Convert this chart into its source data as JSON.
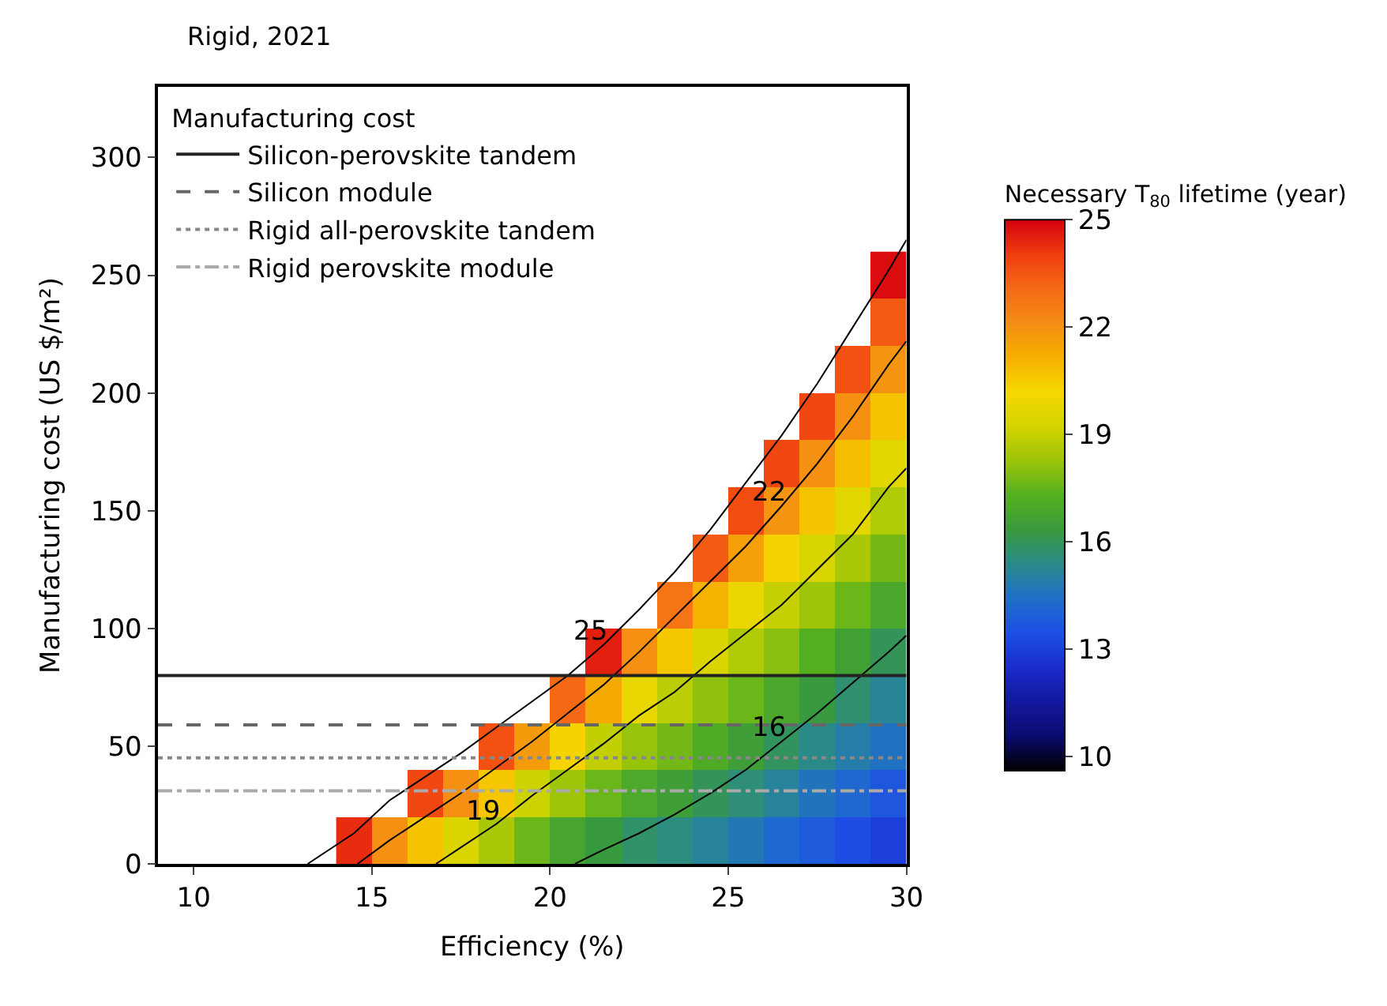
{
  "chart_data": {
    "type": "heatmap",
    "title": "Rigid, 2021",
    "xlabel": "Efficiency (%)",
    "ylabel": "Manufacturing cost (US $/m²)",
    "clabel": "Necessary T$_{80}$ lifetime (year)",
    "legend_title": "Manufacturing cost",
    "x": [
      14.5,
      15.5,
      16.5,
      17.5,
      18.5,
      19.5,
      20.5,
      21.5,
      22.5,
      23.5,
      24.5,
      25.5,
      26.5,
      27.5,
      28.5,
      29.5
    ],
    "y": [
      250,
      230,
      210,
      190,
      170,
      150,
      130,
      110,
      90,
      70,
      50,
      30,
      10
    ],
    "cells": [
      [
        null,
        null,
        null,
        null,
        null,
        null,
        null,
        null,
        null,
        null,
        null,
        null,
        null,
        null,
        null,
        24.8
      ],
      [
        null,
        null,
        null,
        null,
        null,
        null,
        null,
        null,
        null,
        null,
        null,
        null,
        null,
        null,
        null,
        23.4
      ],
      [
        null,
        null,
        null,
        null,
        null,
        null,
        null,
        null,
        null,
        null,
        null,
        null,
        null,
        null,
        23.6,
        21.9
      ],
      [
        null,
        null,
        null,
        null,
        null,
        null,
        null,
        null,
        null,
        null,
        null,
        null,
        null,
        23.8,
        22.0,
        20.7
      ],
      [
        null,
        null,
        null,
        null,
        null,
        null,
        null,
        null,
        null,
        null,
        null,
        null,
        23.8,
        22.0,
        20.8,
        19.6
      ],
      [
        null,
        null,
        null,
        null,
        null,
        null,
        null,
        null,
        null,
        null,
        null,
        23.7,
        21.9,
        20.7,
        19.6,
        18.6
      ],
      [
        null,
        null,
        null,
        null,
        null,
        null,
        null,
        null,
        null,
        null,
        23.4,
        21.6,
        20.3,
        19.3,
        18.5,
        17.7
      ],
      [
        null,
        null,
        null,
        null,
        null,
        null,
        null,
        null,
        null,
        22.8,
        21.1,
        19.9,
        19.0,
        18.3,
        17.6,
        16.9
      ],
      [
        null,
        null,
        null,
        null,
        null,
        null,
        null,
        24.5,
        22.0,
        20.6,
        19.4,
        18.6,
        18.0,
        17.3,
        16.6,
        16.0
      ],
      [
        null,
        null,
        null,
        null,
        null,
        null,
        23.1,
        21.3,
        19.8,
        18.8,
        18.1,
        17.6,
        16.9,
        16.3,
        15.7,
        15.2
      ],
      [
        null,
        null,
        null,
        null,
        23.6,
        21.7,
        20.3,
        18.9,
        18.2,
        17.7,
        17.1,
        16.5,
        15.9,
        15.4,
        14.9,
        14.5
      ],
      [
        null,
        null,
        23.8,
        22.0,
        20.6,
        19.1,
        18.3,
        17.6,
        17.0,
        16.5,
        16.0,
        15.6,
        15.1,
        14.6,
        14.2,
        13.7
      ],
      [
        24.3,
        22.0,
        20.7,
        19.4,
        18.5,
        17.6,
        16.8,
        16.3,
        15.8,
        15.5,
        15.1,
        14.7,
        14.2,
        13.8,
        13.4,
        13.0
      ]
    ],
    "colors": [
      "#000000",
      "#0a0a6e",
      "#12189e",
      "#1a2ccc",
      "#1e4fe6",
      "#1f6fc8",
      "#2a8a8a",
      "#3a9a3c",
      "#55b020",
      "#9cc40a",
      "#d4d400",
      "#f5d800",
      "#f5b000",
      "#f58c14",
      "#f56a14",
      "#f03c10",
      "#d40010"
    ],
    "clim": [
      9.6,
      25
    ],
    "cticks": [
      10,
      13,
      16,
      19,
      22,
      25
    ],
    "xlim": [
      9,
      30
    ],
    "xticks": [
      10,
      15,
      20,
      25,
      30
    ],
    "ylim": [
      0,
      330
    ],
    "yticks": [
      0,
      50,
      100,
      150,
      200,
      250,
      300
    ],
    "legend": "top left",
    "series": [
      {
        "type": "line",
        "color": "#000000",
        "line_style": "solid",
        "x": [
          13.2,
          14.5,
          15.5,
          16.5,
          17.5,
          18.5,
          19.5,
          20.5,
          21.5,
          22.5,
          23.5,
          24.5,
          25.5,
          26.5,
          27.5,
          28.5,
          29.5,
          30
        ],
        "values": [
          0,
          13,
          27,
          37,
          47,
          58,
          69,
          80,
          93,
          108,
          124,
          142,
          162,
          182,
          204,
          228,
          252,
          265
        ]
      },
      {
        "type": "line",
        "color": "#000000",
        "line_style": "solid",
        "x": [
          14.6,
          15.5,
          16.5,
          17.5,
          18.5,
          19.5,
          20.5,
          21.5,
          22.5,
          23.5,
          24.5,
          25.5,
          26.5,
          27.5,
          28.5,
          29.5,
          30
        ],
        "values": [
          0,
          10,
          20,
          30,
          41,
          52,
          64,
          76,
          90,
          105,
          120,
          135,
          152,
          170,
          190,
          212,
          222
        ]
      },
      {
        "type": "line",
        "color": "#000000",
        "line_style": "solid",
        "x": [
          16.8,
          17.5,
          18.5,
          19.5,
          20.5,
          21.5,
          22.5,
          23.5,
          24.5,
          25.5,
          26.5,
          27.5,
          28.5,
          29.5,
          30
        ],
        "values": [
          0,
          7,
          17,
          29,
          40,
          51,
          63,
          73,
          86,
          98,
          110,
          125,
          140,
          160,
          168
        ]
      },
      {
        "type": "line",
        "color": "#000000",
        "line_style": "solid",
        "x": [
          20.7,
          21.5,
          22.5,
          23.5,
          24.5,
          25.5,
          26.5,
          27.5,
          28.5,
          29.5,
          30
        ],
        "values": [
          0,
          6,
          13,
          21,
          30,
          40,
          52,
          64,
          77,
          90,
          97
        ]
      },
      {
        "type": "line",
        "name": "Silicon-perovskite tandem",
        "color": "#222222",
        "line_style": "solid",
        "x": [
          9,
          30
        ],
        "values": [
          80,
          80
        ]
      },
      {
        "type": "line",
        "name": "Silicon module",
        "color": "#666666",
        "line_style": "dashed",
        "x": [
          9,
          30
        ],
        "values": [
          59,
          59
        ]
      },
      {
        "type": "line",
        "name": "Rigid all-perovskite tandem",
        "color": "#888888",
        "line_style": "dotted",
        "x": [
          9,
          30
        ],
        "values": [
          45,
          45
        ]
      },
      {
        "type": "line",
        "name": "Rigid perovskite module",
        "color": "#aaaaaa",
        "line_style": "dashdot",
        "x": [
          9,
          30
        ],
        "values": [
          31,
          31
        ]
      }
    ],
    "annotations": [
      {
        "text": "25",
        "x": 21.5,
        "y": 93
      },
      {
        "text": "22",
        "x": 26.5,
        "y": 152
      },
      {
        "text": "19",
        "x": 18.5,
        "y": 17
      },
      {
        "text": "16",
        "x": 26.5,
        "y": 52
      }
    ]
  }
}
